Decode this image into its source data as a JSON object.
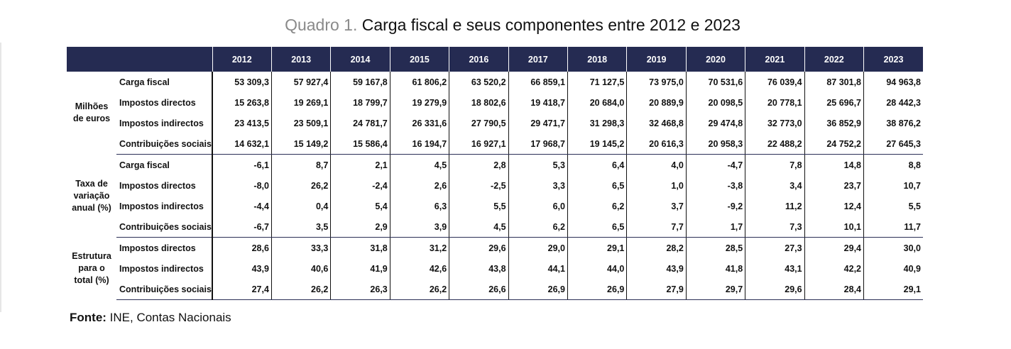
{
  "title": {
    "prefix": "Quadro 1.",
    "main": "Carga fiscal e seus componentes entre 2012 e 2023"
  },
  "table": {
    "years": [
      "2012",
      "2013",
      "2014",
      "2015",
      "2016",
      "2017",
      "2018",
      "2019",
      "2020",
      "2021",
      "2022",
      "2023"
    ],
    "groups": [
      {
        "label_lines": [
          "Milhões",
          "de euros"
        ],
        "rows": [
          {
            "label": "Carga fiscal",
            "values": [
              "53 309,3",
              "57 927,4",
              "59 167,8",
              "61 806,2",
              "63 520,2",
              "66 859,1",
              "71 127,5",
              "73 975,0",
              "70 531,6",
              "76 039,4",
              "87 301,8",
              "94 963,8"
            ]
          },
          {
            "label": "Impostos directos",
            "values": [
              "15 263,8",
              "19 269,1",
              "18 799,7",
              "19 279,9",
              "18 802,6",
              "19 418,7",
              "20 684,0",
              "20 889,9",
              "20 098,5",
              "20 778,1",
              "25 696,7",
              "28 442,3"
            ]
          },
          {
            "label": "Impostos indirectos",
            "values": [
              "23 413,5",
              "23 509,1",
              "24 781,7",
              "26 331,6",
              "27 790,5",
              "29 471,7",
              "31 298,3",
              "32 468,8",
              "29 474,8",
              "32 773,0",
              "36 852,9",
              "38 876,2"
            ]
          },
          {
            "label": "Contribuições sociais",
            "values": [
              "14 632,1",
              "15 149,2",
              "15 586,4",
              "16 194,7",
              "16 927,1",
              "17 968,7",
              "19 145,2",
              "20 616,3",
              "20 958,3",
              "22 488,2",
              "24 752,2",
              "27 645,3"
            ]
          }
        ]
      },
      {
        "label_lines": [
          "Taxa de",
          "variação",
          "anual (%)"
        ],
        "rows": [
          {
            "label": "Carga fiscal",
            "values": [
              "-6,1",
              "8,7",
              "2,1",
              "4,5",
              "2,8",
              "5,3",
              "6,4",
              "4,0",
              "-4,7",
              "7,8",
              "14,8",
              "8,8"
            ]
          },
          {
            "label": "Impostos directos",
            "values": [
              "-8,0",
              "26,2",
              "-2,4",
              "2,6",
              "-2,5",
              "3,3",
              "6,5",
              "1,0",
              "-3,8",
              "3,4",
              "23,7",
              "10,7"
            ]
          },
          {
            "label": "Impostos indirectos",
            "values": [
              "-4,4",
              "0,4",
              "5,4",
              "6,3",
              "5,5",
              "6,0",
              "6,2",
              "3,7",
              "-9,2",
              "11,2",
              "12,4",
              "5,5"
            ]
          },
          {
            "label": "Contribuições sociais",
            "values": [
              "-6,7",
              "3,5",
              "2,9",
              "3,9",
              "4,5",
              "6,2",
              "6,5",
              "7,7",
              "1,7",
              "7,3",
              "10,1",
              "11,7"
            ]
          }
        ]
      },
      {
        "label_lines": [
          "Estrutura",
          "para o",
          "total (%)"
        ],
        "rows": [
          {
            "label": "Impostos directos",
            "values": [
              "28,6",
              "33,3",
              "31,8",
              "31,2",
              "29,6",
              "29,0",
              "29,1",
              "28,2",
              "28,5",
              "27,3",
              "29,4",
              "30,0"
            ]
          },
          {
            "label": "Impostos indirectos",
            "values": [
              "43,9",
              "40,6",
              "41,9",
              "42,6",
              "43,8",
              "44,1",
              "44,0",
              "43,9",
              "41,8",
              "43,1",
              "42,2",
              "40,9"
            ]
          },
          {
            "label": "Contribuições sociais",
            "values": [
              "27,4",
              "26,2",
              "26,3",
              "26,2",
              "26,6",
              "26,9",
              "26,9",
              "27,9",
              "29,7",
              "29,6",
              "28,4",
              "29,1"
            ]
          }
        ]
      }
    ]
  },
  "source": {
    "label": "Fonte:",
    "text": " INE, Contas Nacionais"
  }
}
